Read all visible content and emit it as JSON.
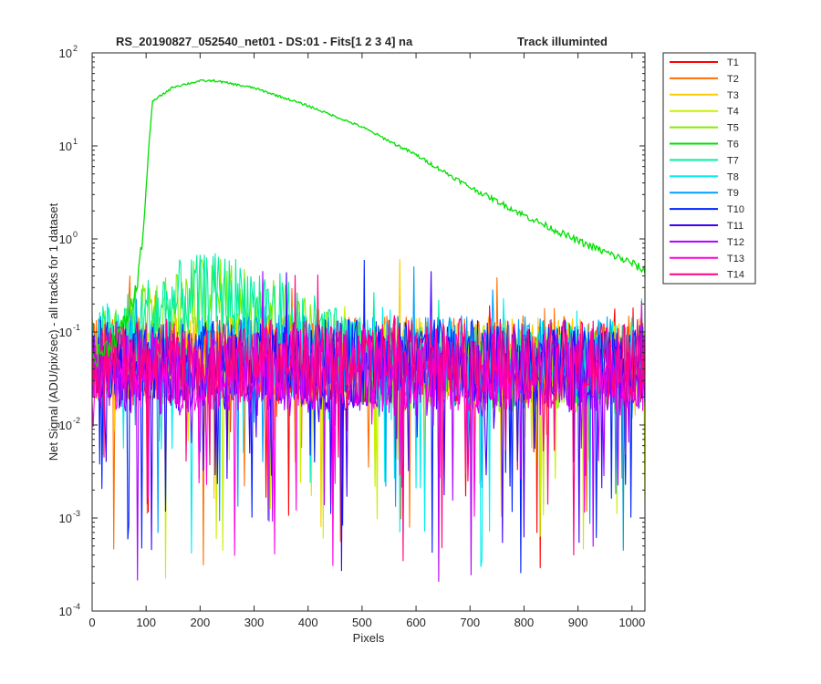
{
  "chart_data": {
    "type": "line",
    "title": "RS_20190827_052540_net01 - DS:01 - Fits[1  2  3  4]   na",
    "title_right": "Track illuminted",
    "xlabel": "Pixels",
    "ylabel": "Net Signal (ADU/pix/sec) - all tracks for 1 dataset",
    "xlim": [
      0,
      1024
    ],
    "ylim": [
      0.0001,
      100
    ],
    "y_scale": "log",
    "x_ticks": [
      "0",
      "100",
      "200",
      "300",
      "400",
      "500",
      "600",
      "700",
      "800",
      "900",
      "1000"
    ],
    "y_ticks": [
      {
        "base": "10",
        "exp": "-4"
      },
      {
        "base": "10",
        "exp": "-3"
      },
      {
        "base": "10",
        "exp": "-2"
      },
      {
        "base": "10",
        "exp": "-1"
      },
      {
        "base": "10",
        "exp": "0"
      },
      {
        "base": "10",
        "exp": "1"
      },
      {
        "base": "10",
        "exp": "2"
      }
    ],
    "grid": false,
    "legend_position": "outside-right",
    "illuminated_track": {
      "name": "T6",
      "points": [
        [
          0,
          0.05
        ],
        [
          30,
          0.07
        ],
        [
          60,
          0.12
        ],
        [
          80,
          0.25
        ],
        [
          95,
          1.2
        ],
        [
          105,
          10
        ],
        [
          112,
          30
        ],
        [
          150,
          43
        ],
        [
          200,
          50
        ],
        [
          230,
          50
        ],
        [
          300,
          42
        ],
        [
          400,
          27
        ],
        [
          500,
          16
        ],
        [
          600,
          8
        ],
        [
          700,
          3.6
        ],
        [
          800,
          1.8
        ],
        [
          900,
          0.95
        ],
        [
          1000,
          0.55
        ],
        [
          1024,
          0.45
        ]
      ]
    },
    "series": [
      {
        "name": "T1",
        "color": "#ff0000"
      },
      {
        "name": "T2",
        "color": "#ff6f00"
      },
      {
        "name": "T3",
        "color": "#ffcc00"
      },
      {
        "name": "T4",
        "color": "#c8f000"
      },
      {
        "name": "T5",
        "color": "#80ee00"
      },
      {
        "name": "T6",
        "color": "#00e000"
      },
      {
        "name": "T7",
        "color": "#00f0a0"
      },
      {
        "name": "T8",
        "color": "#00eef0"
      },
      {
        "name": "T9",
        "color": "#00a0ff"
      },
      {
        "name": "T10",
        "color": "#0020ff"
      },
      {
        "name": "T11",
        "color": "#4000ff"
      },
      {
        "name": "T12",
        "color": "#b000ff"
      },
      {
        "name": "T13",
        "color": "#ff00e0"
      },
      {
        "name": "T14",
        "color": "#ff0080"
      }
    ]
  }
}
